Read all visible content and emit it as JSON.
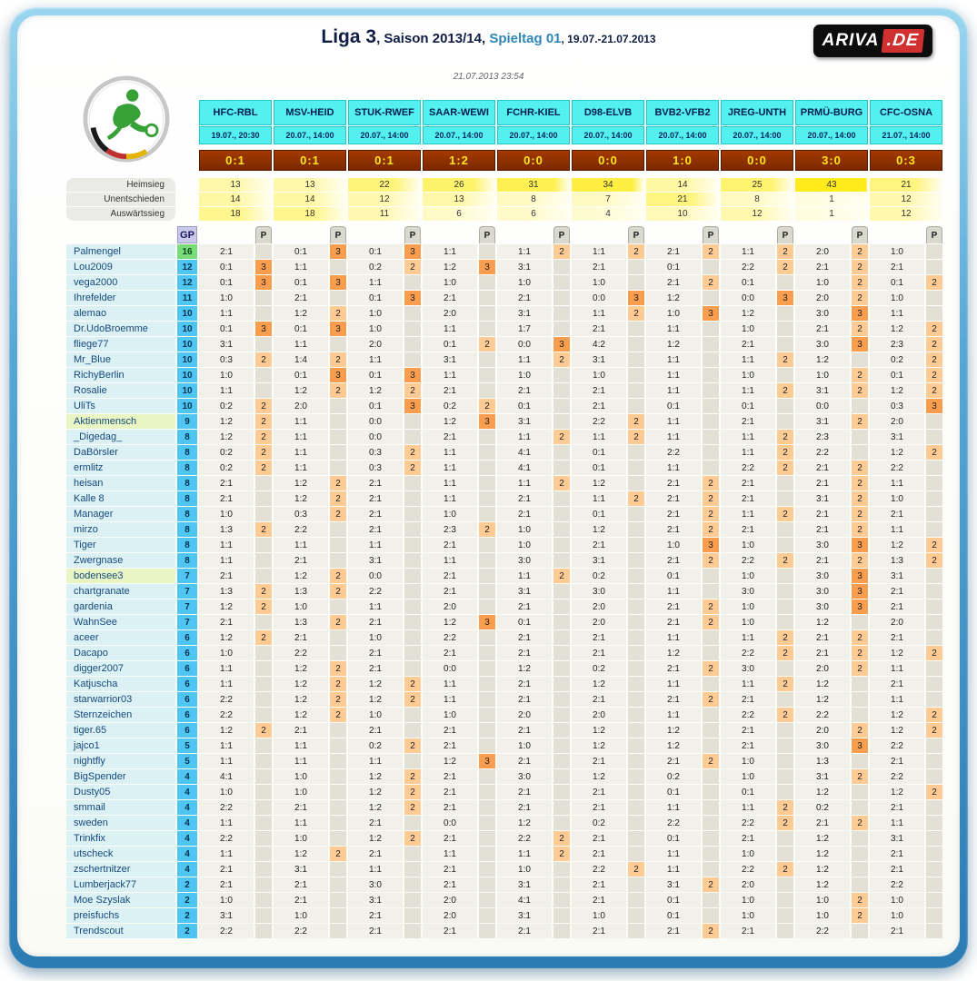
{
  "header": {
    "league": "Liga 3",
    "season": ", Saison 2013/14, ",
    "spieltag": "Spieltag 01",
    "daterange": ", 19.07.-21.07.2013",
    "timestamp": "21.07.2013 23:54",
    "brand_name": "ARIVA",
    "brand_tld": ".DE"
  },
  "labels": {
    "heimsieg": "Heimsieg",
    "unentschieden": "Unentschieden",
    "auswaertssieg": "Auswärtssieg",
    "gp": "GP",
    "p": "P"
  },
  "colors": {
    "header_cyan": "#54EFEF",
    "result_bg": "#8F3000",
    "result_text": "#FFE81E",
    "points_2": "#FFCB95",
    "points_3": "#FB9D4E",
    "gp_blue": "#4FC6F2",
    "leader_green": "#79DC79",
    "frame_blue": "#2C7CB4",
    "spieltag_accent": "#2E86B8",
    "brand_red": "#D03030"
  },
  "matches": [
    {
      "teams": "HFC-RBL",
      "date": "19.07., 20:30",
      "result": "0:1",
      "stats": [
        13,
        14,
        18
      ]
    },
    {
      "teams": "MSV-HEID",
      "date": "20.07., 14:00",
      "result": "0:1",
      "stats": [
        13,
        14,
        18
      ]
    },
    {
      "teams": "STUK-RWEF",
      "date": "20.07., 14:00",
      "result": "0:1",
      "stats": [
        22,
        12,
        11
      ]
    },
    {
      "teams": "SAAR-WEWI",
      "date": "20.07., 14:00",
      "result": "1:2",
      "stats": [
        26,
        13,
        6
      ]
    },
    {
      "teams": "FCHR-KIEL",
      "date": "20.07., 14:00",
      "result": "0:0",
      "stats": [
        31,
        8,
        6
      ]
    },
    {
      "teams": "D98-ELVB",
      "date": "20.07., 14:00",
      "result": "0:0",
      "stats": [
        34,
        7,
        4
      ]
    },
    {
      "teams": "BVB2-VFB2",
      "date": "20.07., 14:00",
      "result": "1:0",
      "stats": [
        14,
        21,
        10
      ]
    },
    {
      "teams": "JREG-UNTH",
      "date": "20.07., 14:00",
      "result": "0:0",
      "stats": [
        25,
        8,
        12
      ]
    },
    {
      "teams": "PRMÜ-BURG",
      "date": "20.07., 14:00",
      "result": "3:0",
      "stats": [
        43,
        1,
        1
      ]
    },
    {
      "teams": "CFC-OSNA",
      "date": "21.07., 14:00",
      "result": "0:3",
      "stats": [
        21,
        12,
        12
      ]
    }
  ],
  "players": [
    {
      "n": "Palmengel",
      "gp": 16,
      "lead": true,
      "t": [
        "2:1",
        "0:1",
        "0:1",
        "1:1",
        "1:1",
        "1:1",
        "2:1",
        "1:1",
        "2:0",
        "1:0"
      ],
      "p": [
        "",
        "3",
        "3",
        "",
        "2",
        "2",
        "2",
        "2",
        "2",
        ""
      ]
    },
    {
      "n": "Lou2009",
      "gp": 12,
      "t": [
        "0:1",
        "1:1",
        "0:2",
        "1:2",
        "3:1",
        "2:1",
        "0:1",
        "2:2",
        "2:1",
        "2:1"
      ],
      "p": [
        "3",
        "",
        "2",
        "3",
        "",
        "",
        "",
        "2",
        "2",
        ""
      ]
    },
    {
      "n": "vega2000",
      "gp": 12,
      "t": [
        "0:1",
        "0:1",
        "1:1",
        "1:0",
        "1:0",
        "1:0",
        "2:1",
        "0:1",
        "1:0",
        "0:1"
      ],
      "p": [
        "3",
        "3",
        "",
        "",
        "",
        "",
        "2",
        "",
        "2",
        "2"
      ]
    },
    {
      "n": "Ihrefelder",
      "gp": 11,
      "t": [
        "1:0",
        "2:1",
        "0:1",
        "2:1",
        "2:1",
        "0:0",
        "1:2",
        "0:0",
        "2:0",
        "1:0"
      ],
      "p": [
        "",
        "",
        "3",
        "",
        "",
        "3",
        "",
        "3",
        "2",
        ""
      ]
    },
    {
      "n": "alemao",
      "gp": 10,
      "t": [
        "1:1",
        "1:2",
        "1:0",
        "2:0",
        "3:1",
        "1:1",
        "1:0",
        "1:2",
        "3:0",
        "1:1"
      ],
      "p": [
        "",
        "2",
        "",
        "",
        "",
        "2",
        "3",
        "",
        "3",
        ""
      ]
    },
    {
      "n": "Dr.UdoBroemme",
      "gp": 10,
      "t": [
        "0:1",
        "0:1",
        "1:0",
        "1:1",
        "1:7",
        "2:1",
        "1:1",
        "1:0",
        "2:1",
        "1:2"
      ],
      "p": [
        "3",
        "3",
        "",
        "",
        "",
        "",
        "",
        "",
        "2",
        "2"
      ]
    },
    {
      "n": "fliege77",
      "gp": 10,
      "t": [
        "3:1",
        "1:1",
        "2:0",
        "0:1",
        "0:0",
        "4:2",
        "1:2",
        "2:1",
        "3:0",
        "2:3"
      ],
      "p": [
        "",
        "",
        "",
        "2",
        "3",
        "",
        "",
        "",
        "3",
        "2"
      ]
    },
    {
      "n": "Mr_Blue",
      "gp": 10,
      "t": [
        "0:3",
        "1:4",
        "1:1",
        "3:1",
        "1:1",
        "3:1",
        "1:1",
        "1:1",
        "1:2",
        "0:2"
      ],
      "p": [
        "2",
        "2",
        "",
        "",
        "2",
        "",
        "",
        "2",
        "",
        "2"
      ]
    },
    {
      "n": "RichyBerlin",
      "gp": 10,
      "t": [
        "1:0",
        "0:1",
        "0:1",
        "1:1",
        "1:0",
        "1:0",
        "1:1",
        "1:0",
        "1:0",
        "0:1"
      ],
      "p": [
        "",
        "3",
        "3",
        "",
        "",
        "",
        "",
        "",
        "2",
        "2"
      ]
    },
    {
      "n": "Rosalie",
      "gp": 10,
      "t": [
        "1:1",
        "1:2",
        "1:2",
        "2:1",
        "2:1",
        "2:1",
        "1:1",
        "1:1",
        "3:1",
        "1:2"
      ],
      "p": [
        "",
        "2",
        "2",
        "",
        "",
        "",
        "",
        "2",
        "2",
        "2"
      ]
    },
    {
      "n": "UliTs",
      "gp": 10,
      "t": [
        "0:2",
        "2:0",
        "0:1",
        "0:2",
        "0:1",
        "2:1",
        "0:1",
        "0:1",
        "0:0",
        "0:3"
      ],
      "p": [
        "2",
        "",
        "3",
        "2",
        "",
        "",
        "",
        "",
        "",
        "3"
      ]
    },
    {
      "n": "Aktienmensch",
      "gp": 9,
      "hl": true,
      "t": [
        "1:2",
        "1:1",
        "0:0",
        "1:2",
        "3:1",
        "2:2",
        "1:1",
        "2:1",
        "3:1",
        "2:0"
      ],
      "p": [
        "2",
        "",
        "",
        "3",
        "",
        "2",
        "",
        "",
        "2",
        ""
      ]
    },
    {
      "n": "_Digedag_",
      "gp": 8,
      "t": [
        "1:2",
        "1:1",
        "0:0",
        "2:1",
        "1:1",
        "1:1",
        "1:1",
        "1:1",
        "2:3",
        "3:1"
      ],
      "p": [
        "2",
        "",
        "",
        "",
        "2",
        "2",
        "",
        "2",
        "",
        ""
      ]
    },
    {
      "n": "DaBörsler",
      "gp": 8,
      "t": [
        "0:2",
        "1:1",
        "0:3",
        "1:1",
        "4:1",
        "0:1",
        "2:2",
        "1:1",
        "2:2",
        "1:2"
      ],
      "p": [
        "2",
        "",
        "2",
        "",
        "",
        "",
        "",
        "2",
        "",
        "2"
      ]
    },
    {
      "n": "ermlitz",
      "gp": 8,
      "t": [
        "0:2",
        "1:1",
        "0:3",
        "1:1",
        "4:1",
        "0:1",
        "1:1",
        "2:2",
        "2:1",
        "2:2"
      ],
      "p": [
        "2",
        "",
        "2",
        "",
        "",
        "",
        "",
        "2",
        "2",
        ""
      ]
    },
    {
      "n": "heisan",
      "gp": 8,
      "t": [
        "2:1",
        "1:2",
        "2:1",
        "1:1",
        "1:1",
        "1:2",
        "2:1",
        "2:1",
        "2:1",
        "1:1"
      ],
      "p": [
        "",
        "2",
        "",
        "",
        "2",
        "",
        "2",
        "",
        "2",
        ""
      ]
    },
    {
      "n": "Kalle 8",
      "gp": 8,
      "t": [
        "2:1",
        "1:2",
        "2:1",
        "1:1",
        "2:1",
        "1:1",
        "2:1",
        "2:1",
        "3:1",
        "1:0"
      ],
      "p": [
        "",
        "2",
        "",
        "",
        "",
        "2",
        "2",
        "",
        "2",
        ""
      ]
    },
    {
      "n": "Manager",
      "gp": 8,
      "t": [
        "1:0",
        "0:3",
        "2:1",
        "1:0",
        "2:1",
        "0:1",
        "2:1",
        "1:1",
        "2:1",
        "2:1"
      ],
      "p": [
        "",
        "2",
        "",
        "",
        "",
        "",
        "2",
        "2",
        "2",
        ""
      ]
    },
    {
      "n": "mirzo",
      "gp": 8,
      "t": [
        "1:3",
        "2:2",
        "2:1",
        "2:3",
        "1:0",
        "1:2",
        "2:1",
        "2:1",
        "2:1",
        "1:1"
      ],
      "p": [
        "2",
        "",
        "",
        "2",
        "",
        "",
        "2",
        "",
        "2",
        ""
      ]
    },
    {
      "n": "Tiger",
      "gp": 8,
      "t": [
        "1:1",
        "1:1",
        "1:1",
        "2:1",
        "1:0",
        "2:1",
        "1:0",
        "1:0",
        "3:0",
        "1:2"
      ],
      "p": [
        "",
        "",
        "",
        "",
        "",
        "",
        "3",
        "",
        "3",
        "2"
      ]
    },
    {
      "n": "Zwergnase",
      "gp": 8,
      "t": [
        "1:1",
        "2:1",
        "3:1",
        "1:1",
        "3:0",
        "3:1",
        "2:1",
        "2:2",
        "2:1",
        "1:3"
      ],
      "p": [
        "",
        "",
        "",
        "",
        "",
        "",
        "2",
        "2",
        "2",
        "2"
      ]
    },
    {
      "n": "bodensee3",
      "gp": 7,
      "hl": true,
      "t": [
        "2:1",
        "1:2",
        "0:0",
        "2:1",
        "1:1",
        "0:2",
        "0:1",
        "1:0",
        "3:0",
        "3:1"
      ],
      "p": [
        "",
        "2",
        "",
        "",
        "2",
        "",
        "",
        "",
        "3",
        ""
      ]
    },
    {
      "n": "chartgranate",
      "gp": 7,
      "t": [
        "1:3",
        "1:3",
        "2:2",
        "2:1",
        "3:1",
        "3:0",
        "1:1",
        "3:0",
        "3:0",
        "2:1"
      ],
      "p": [
        "2",
        "2",
        "",
        "",
        "",
        "",
        "",
        "",
        "3",
        ""
      ]
    },
    {
      "n": "gardenia",
      "gp": 7,
      "t": [
        "1:2",
        "1:0",
        "1:1",
        "2:0",
        "2:1",
        "2:0",
        "2:1",
        "1:0",
        "3:0",
        "2:1"
      ],
      "p": [
        "2",
        "",
        "",
        "",
        "",
        "",
        "2",
        "",
        "3",
        ""
      ]
    },
    {
      "n": "WahnSee",
      "gp": 7,
      "t": [
        "2:1",
        "1:3",
        "2:1",
        "1:2",
        "0:1",
        "2:0",
        "2:1",
        "1:0",
        "1:2",
        "2:0"
      ],
      "p": [
        "",
        "2",
        "",
        "3",
        "",
        "",
        "2",
        "",
        "",
        ""
      ]
    },
    {
      "n": "aceer",
      "gp": 6,
      "t": [
        "1:2",
        "2:1",
        "1:0",
        "2:2",
        "2:1",
        "2:1",
        "1:1",
        "1:1",
        "2:1",
        "2:1"
      ],
      "p": [
        "2",
        "",
        "",
        "",
        "",
        "",
        "",
        "2",
        "2",
        ""
      ]
    },
    {
      "n": "Dacapo",
      "gp": 6,
      "t": [
        "1:0",
        "2:2",
        "2:1",
        "2:1",
        "2:1",
        "2:1",
        "1:2",
        "2:2",
        "2:1",
        "1:2"
      ],
      "p": [
        "",
        "",
        "",
        "",
        "",
        "",
        "",
        "2",
        "2",
        "2"
      ]
    },
    {
      "n": "digger2007",
      "gp": 6,
      "t": [
        "1:1",
        "1:2",
        "2:1",
        "0:0",
        "1:2",
        "0:2",
        "2:1",
        "3:0",
        "2:0",
        "1:1"
      ],
      "p": [
        "",
        "2",
        "",
        "",
        "",
        "",
        "2",
        "",
        "2",
        ""
      ]
    },
    {
      "n": "Katjuscha",
      "gp": 6,
      "t": [
        "1:1",
        "1:2",
        "1:2",
        "1:1",
        "2:1",
        "1:2",
        "1:1",
        "1:1",
        "1:2",
        "2:1"
      ],
      "p": [
        "",
        "2",
        "2",
        "",
        "",
        "",
        "",
        "2",
        "",
        ""
      ]
    },
    {
      "n": "starwarrior03",
      "gp": 6,
      "t": [
        "2:2",
        "1:2",
        "1:2",
        "1:1",
        "2:1",
        "2:1",
        "2:1",
        "2:1",
        "1:2",
        "1:1"
      ],
      "p": [
        "",
        "2",
        "2",
        "",
        "",
        "",
        "2",
        "",
        "",
        ""
      ]
    },
    {
      "n": "Sternzeichen",
      "gp": 6,
      "t": [
        "2:2",
        "1:2",
        "1:0",
        "1:0",
        "2:0",
        "2:0",
        "1:1",
        "2:2",
        "2:2",
        "1:2"
      ],
      "p": [
        "",
        "2",
        "",
        "",
        "",
        "",
        "",
        "2",
        "",
        "2"
      ]
    },
    {
      "n": "tiger.65",
      "gp": 6,
      "t": [
        "1:2",
        "2:1",
        "2:1",
        "2:1",
        "2:1",
        "1:2",
        "1:2",
        "2:1",
        "2:0",
        "1:2"
      ],
      "p": [
        "2",
        "",
        "",
        "",
        "",
        "",
        "",
        "",
        "2",
        "2"
      ]
    },
    {
      "n": "jajco1",
      "gp": 5,
      "t": [
        "1:1",
        "1:1",
        "0:2",
        "2:1",
        "1:0",
        "1:2",
        "1:2",
        "2:1",
        "3:0",
        "2:2"
      ],
      "p": [
        "",
        "",
        "2",
        "",
        "",
        "",
        "",
        "",
        "3",
        ""
      ]
    },
    {
      "n": "nightfly",
      "gp": 5,
      "t": [
        "1:1",
        "1:1",
        "1:1",
        "1:2",
        "2:1",
        "2:1",
        "2:1",
        "1:0",
        "1:3",
        "2:1"
      ],
      "p": [
        "",
        "",
        "",
        "3",
        "",
        "",
        "2",
        "",
        "",
        ""
      ]
    },
    {
      "n": "BigSpender",
      "gp": 4,
      "t": [
        "4:1",
        "1:0",
        "1:2",
        "2:1",
        "3:0",
        "1:2",
        "0:2",
        "1:0",
        "3:1",
        "2:2"
      ],
      "p": [
        "",
        "",
        "2",
        "",
        "",
        "",
        "",
        "",
        "2",
        ""
      ]
    },
    {
      "n": "Dusty05",
      "gp": 4,
      "t": [
        "1:0",
        "1:0",
        "1:2",
        "2:1",
        "2:1",
        "2:1",
        "0:1",
        "0:1",
        "1:2",
        "1:2"
      ],
      "p": [
        "",
        "",
        "2",
        "",
        "",
        "",
        "",
        "",
        "",
        "2"
      ]
    },
    {
      "n": "smmail",
      "gp": 4,
      "t": [
        "2:2",
        "2:1",
        "1:2",
        "2:1",
        "2:1",
        "2:1",
        "1:1",
        "1:1",
        "0:2",
        "2:1"
      ],
      "p": [
        "",
        "",
        "2",
        "",
        "",
        "",
        "",
        "2",
        "",
        ""
      ]
    },
    {
      "n": "sweden",
      "gp": 4,
      "t": [
        "1:1",
        "1:1",
        "2:1",
        "0:0",
        "1:2",
        "0:2",
        "2:2",
        "2:2",
        "2:1",
        "1:1"
      ],
      "p": [
        "",
        "",
        "",
        "",
        "",
        "",
        "",
        "2",
        "2",
        ""
      ]
    },
    {
      "n": "Trinkfix",
      "gp": 4,
      "t": [
        "2:2",
        "1:0",
        "1:2",
        "2:1",
        "2:2",
        "2:1",
        "0:1",
        "2:1",
        "1:2",
        "3:1"
      ],
      "p": [
        "",
        "",
        "2",
        "",
        "2",
        "",
        "",
        "",
        "",
        ""
      ]
    },
    {
      "n": "utscheck",
      "gp": 4,
      "t": [
        "1:1",
        "1:2",
        "2:1",
        "1:1",
        "1:1",
        "2:1",
        "1:1",
        "1:0",
        "1:2",
        "2:1"
      ],
      "p": [
        "",
        "2",
        "",
        "",
        "2",
        "",
        "",
        "",
        "",
        ""
      ]
    },
    {
      "n": "zschertnitzer",
      "gp": 4,
      "t": [
        "2:1",
        "3:1",
        "1:1",
        "2:1",
        "1:0",
        "2:2",
        "1:1",
        "2:2",
        "1:2",
        "2:1"
      ],
      "p": [
        "",
        "",
        "",
        "",
        "",
        "2",
        "",
        "2",
        "",
        ""
      ]
    },
    {
      "n": "Lumberjack77",
      "gp": 2,
      "t": [
        "2:1",
        "2:1",
        "3:0",
        "2:1",
        "3:1",
        "2:1",
        "3:1",
        "2:0",
        "1:2",
        "2:2"
      ],
      "p": [
        "",
        "",
        "",
        "",
        "",
        "",
        "2",
        "",
        "",
        ""
      ]
    },
    {
      "n": "Moe Szyslak",
      "gp": 2,
      "t": [
        "1:0",
        "2:1",
        "3:1",
        "2:0",
        "4:1",
        "2:1",
        "0:1",
        "1:0",
        "1:0",
        "1:0"
      ],
      "p": [
        "",
        "",
        "",
        "",
        "",
        "",
        "",
        "",
        "2",
        ""
      ]
    },
    {
      "n": "preisfuchs",
      "gp": 2,
      "t": [
        "3:1",
        "1:0",
        "2:1",
        "2:0",
        "3:1",
        "1:0",
        "0:1",
        "1:0",
        "1:0",
        "1:0"
      ],
      "p": [
        "",
        "",
        "",
        "",
        "",
        "",
        "",
        "",
        "2",
        ""
      ]
    },
    {
      "n": "Trendscout",
      "gp": 2,
      "t": [
        "2:2",
        "2:2",
        "2:1",
        "2:1",
        "2:1",
        "2:1",
        "2:1",
        "2:1",
        "2:2",
        "2:1"
      ],
      "p": [
        "",
        "",
        "",
        "",
        "",
        "",
        "2",
        "",
        "",
        ""
      ]
    }
  ]
}
